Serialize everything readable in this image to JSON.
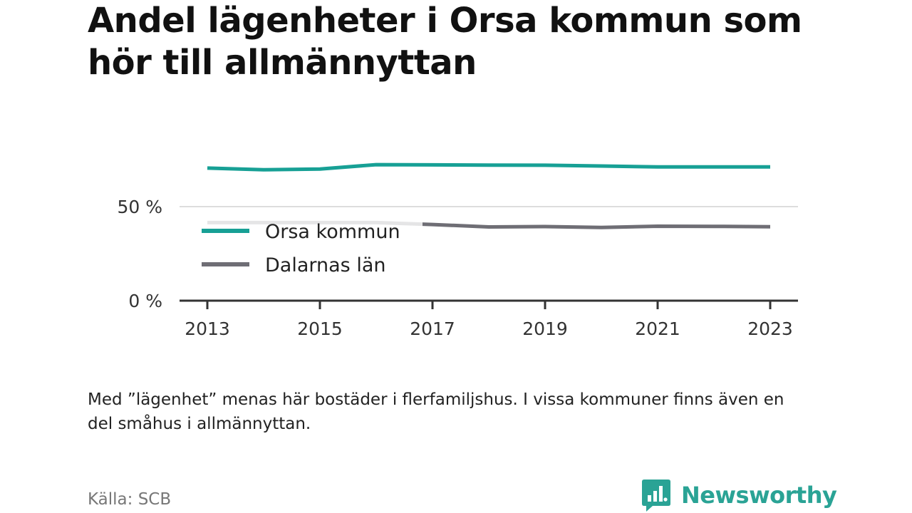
{
  "header": {
    "title": "Andel lägenheter i Orsa kommun som hör till allmännyttan"
  },
  "chart_data": {
    "type": "line",
    "x": [
      2013,
      2014,
      2015,
      2016,
      2017,
      2018,
      2019,
      2020,
      2021,
      2022,
      2023
    ],
    "x_ticks": [
      "2013",
      "2015",
      "2017",
      "2019",
      "2021",
      "2023"
    ],
    "y_ticks": [
      "0 %",
      "50 %"
    ],
    "y_tick_values": [
      0,
      50
    ],
    "ylim": [
      0,
      100
    ],
    "grid": true,
    "legend_position": "bottom-left inside plot",
    "series": [
      {
        "name": "Orsa kommun",
        "color": "#17a095",
        "values": [
          70.5,
          69.6,
          70.0,
          72.3,
          72.2,
          72.1,
          72.0,
          71.6,
          71.1,
          71.1,
          71.1
        ]
      },
      {
        "name": "Dalarnas län",
        "color": "#6f6e75",
        "values": [
          41.5,
          41.5,
          41.5,
          41.5,
          40.5,
          39.2,
          39.4,
          38.9,
          39.6,
          39.5,
          39.3
        ]
      }
    ]
  },
  "footer": {
    "note": "Med ”lägenhet” menas här bostäder i flerfamiljshus. I vissa kommuner finns även en del småhus i allmännyttan.",
    "source": "Källa: SCB",
    "brand": "Newsworthy",
    "brand_color": "#2aa395",
    "brand_icon": "newsworthy-logo-icon"
  }
}
